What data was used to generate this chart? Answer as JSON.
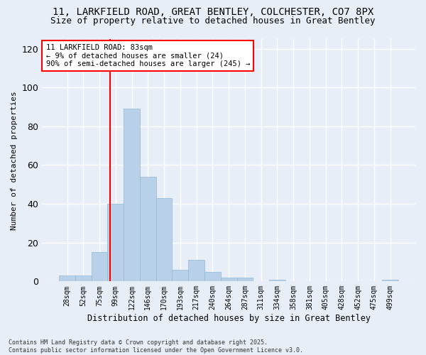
{
  "title1": "11, LARKFIELD ROAD, GREAT BENTLEY, COLCHESTER, CO7 8PX",
  "title2": "Size of property relative to detached houses in Great Bentley",
  "xlabel": "Distribution of detached houses by size in Great Bentley",
  "ylabel": "Number of detached properties",
  "bins": [
    "28sqm",
    "52sqm",
    "75sqm",
    "99sqm",
    "122sqm",
    "146sqm",
    "170sqm",
    "193sqm",
    "217sqm",
    "240sqm",
    "264sqm",
    "287sqm",
    "311sqm",
    "334sqm",
    "358sqm",
    "381sqm",
    "405sqm",
    "428sqm",
    "452sqm",
    "475sqm",
    "499sqm"
  ],
  "values": [
    3,
    3,
    15,
    40,
    89,
    54,
    43,
    6,
    11,
    5,
    2,
    2,
    0,
    1,
    0,
    0,
    0,
    0,
    0,
    0,
    1
  ],
  "bar_color": "#b8d0e8",
  "bar_edge_color": "#90b8d8",
  "red_line_x": 2.65,
  "annotation_title": "11 LARKFIELD ROAD: 83sqm",
  "annotation_line1": "← 9% of detached houses are smaller (24)",
  "annotation_line2": "90% of semi-detached houses are larger (245) →",
  "footer1": "Contains HM Land Registry data © Crown copyright and database right 2025.",
  "footer2": "Contains public sector information licensed under the Open Government Licence v3.0.",
  "ylim": [
    0,
    125
  ],
  "bg_color": "#e8eef8",
  "grid_color": "#ffffff",
  "title_fontsize": 10,
  "subtitle_fontsize": 9
}
